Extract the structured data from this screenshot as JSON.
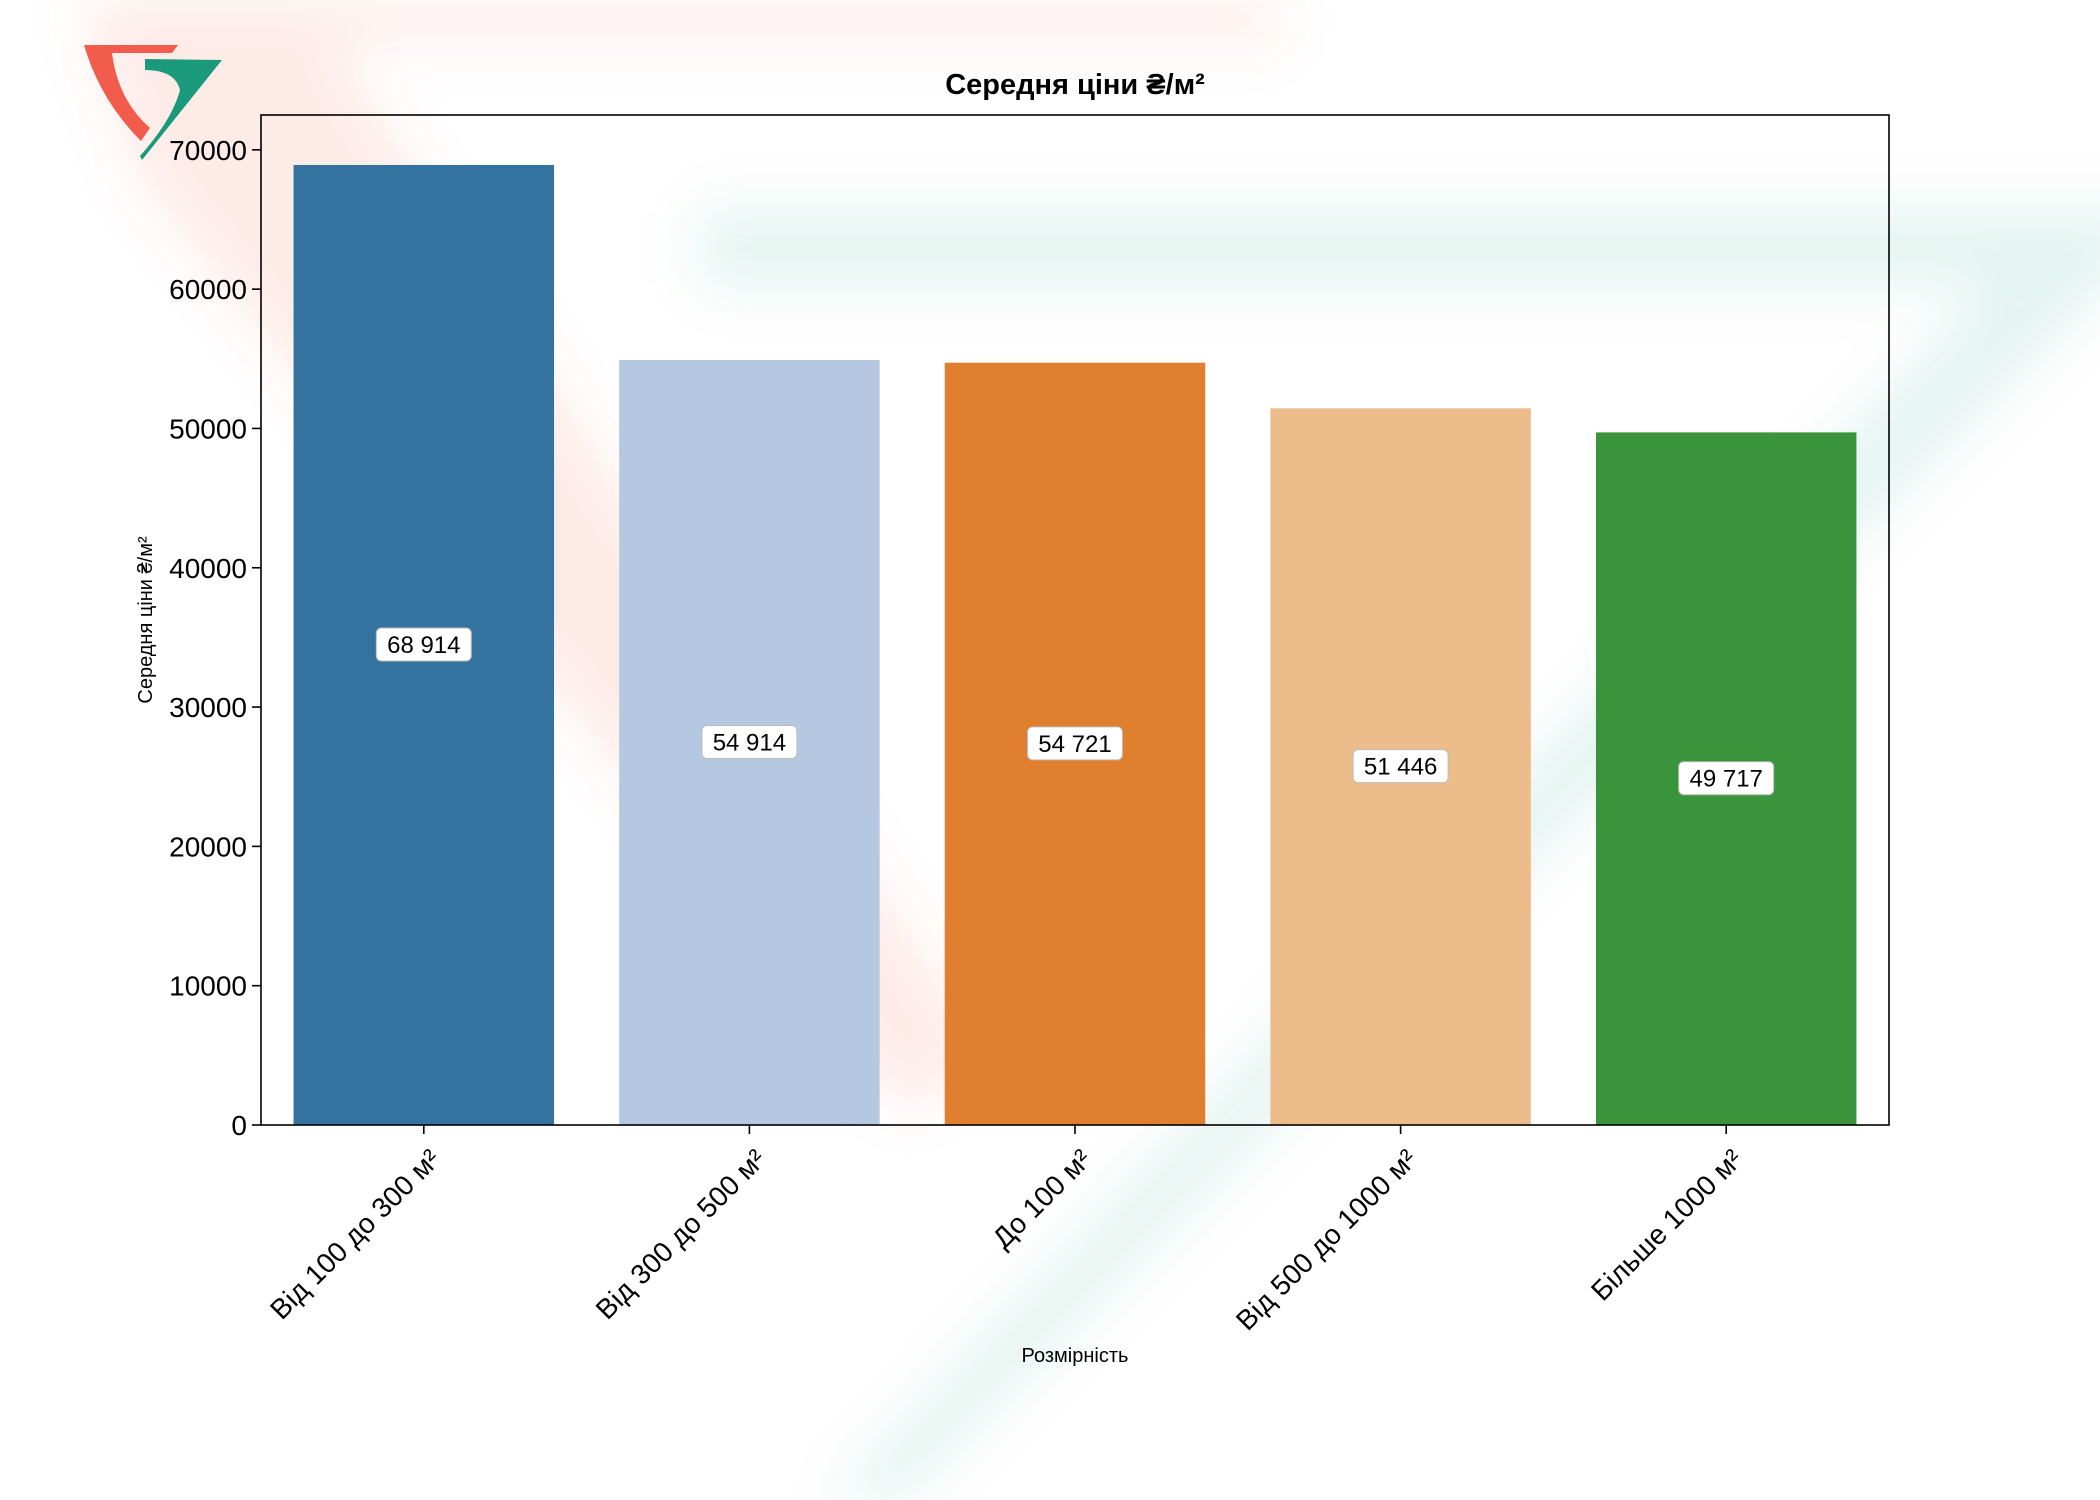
{
  "chart_data": {
    "type": "bar",
    "title": "Середня ціни ₴/м²",
    "xlabel": "Розмірність",
    "ylabel": "Середня ціни ₴/м²",
    "categories": [
      "Від 100 до 300 м²",
      "Від 300 до 500 м²",
      "До  100 м²",
      "Від 500 до 1000 м²",
      "Більше 1000 м²"
    ],
    "values": [
      68914,
      54914,
      54721,
      51446,
      49717
    ],
    "data_labels": [
      "68 914",
      "54 914",
      "54 721",
      "51 446",
      "49 717"
    ],
    "ylim": [
      0,
      72500
    ],
    "yticks": [
      0,
      10000,
      20000,
      30000,
      40000,
      50000,
      60000,
      70000
    ],
    "ytick_labels": [
      "0",
      "10000",
      "20000",
      "30000",
      "40000",
      "50000",
      "60000",
      "70000"
    ],
    "grid": false,
    "bar_colors": [
      "#34729f",
      "#b4c8e2",
      "#e0802e",
      "#ecbc8b",
      "#3a943b"
    ]
  },
  "watermark": {
    "red_color": "#f25c4c",
    "green_color": "#1a9a7a"
  }
}
